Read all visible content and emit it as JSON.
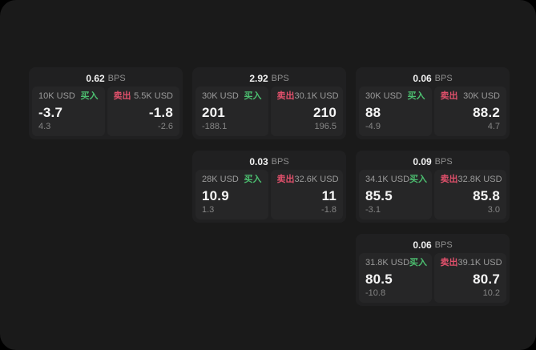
{
  "labels": {
    "buy": "买入",
    "sell": "卖出",
    "bps_unit": "BPS"
  },
  "colors": {
    "page_bg": "#000000",
    "panel_bg": "#1a1a1a",
    "card_bg": "#202021",
    "subcard_bg": "#262627",
    "buy": "#4cbf70",
    "sell": "#e0506b",
    "value_text": "#f5f5f5",
    "muted_text": "#9b9b9b"
  },
  "columns": [
    {
      "cards": [
        {
          "bps": "0.62",
          "buy": {
            "size": "10K USD",
            "value": "-3.7",
            "delta": "4.3"
          },
          "sell": {
            "size": "5.5K USD",
            "value": "-1.8",
            "delta": "-2.6"
          }
        }
      ]
    },
    {
      "cards": [
        {
          "bps": "2.92",
          "buy": {
            "size": "30K USD",
            "value": "201",
            "delta": "-188.1"
          },
          "sell": {
            "size": "30.1K USD",
            "value": "210",
            "delta": "196.5"
          }
        },
        {
          "bps": "0.03",
          "buy": {
            "size": "28K USD",
            "value": "10.9",
            "delta": "1.3"
          },
          "sell": {
            "size": "32.6K USD",
            "value": "11",
            "delta": "-1.8"
          }
        }
      ]
    },
    {
      "cards": [
        {
          "bps": "0.06",
          "buy": {
            "size": "30K USD",
            "value": "88",
            "delta": "-4.9"
          },
          "sell": {
            "size": "30K USD",
            "value": "88.2",
            "delta": "4.7"
          }
        },
        {
          "bps": "0.09",
          "buy": {
            "size": "34.1K USD",
            "value": "85.5",
            "delta": "-3.1"
          },
          "sell": {
            "size": "32.8K USD",
            "value": "85.8",
            "delta": "3.0"
          }
        },
        {
          "bps": "0.06",
          "buy": {
            "size": "31.8K USD",
            "value": "80.5",
            "delta": "-10.8"
          },
          "sell": {
            "size": "39.1K USD",
            "value": "80.7",
            "delta": "10.2"
          }
        }
      ]
    }
  ]
}
